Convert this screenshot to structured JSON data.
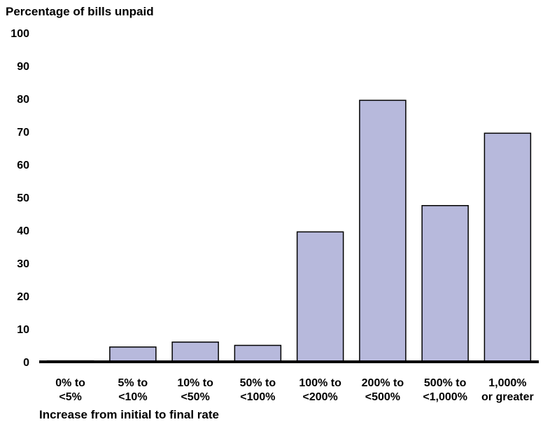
{
  "chart_data": {
    "type": "bar",
    "title": "Percentage of bills unpaid",
    "xlabel": "Increase from initial to final rate",
    "ylabel": "",
    "ylim": [
      0,
      100
    ],
    "yticks": [
      0,
      10,
      20,
      30,
      40,
      50,
      60,
      70,
      80,
      90,
      100
    ],
    "grid": false,
    "categories": [
      [
        "0% to",
        "<5%"
      ],
      [
        "5% to",
        "<10%"
      ],
      [
        "10% to",
        "<50%"
      ],
      [
        "50% to",
        "<100%"
      ],
      [
        "100% to",
        "<200%"
      ],
      [
        "200% to",
        "<500%"
      ],
      [
        "500% to",
        "<1,000%"
      ],
      [
        "1,000%",
        "or greater"
      ]
    ],
    "values": [
      0.3,
      4.5,
      6.0,
      5.0,
      39.5,
      79.5,
      47.5,
      69.5
    ],
    "colors": {
      "bar_fill": "#b7b9dc",
      "bar_stroke": "#000000",
      "axis": "#000000"
    }
  }
}
